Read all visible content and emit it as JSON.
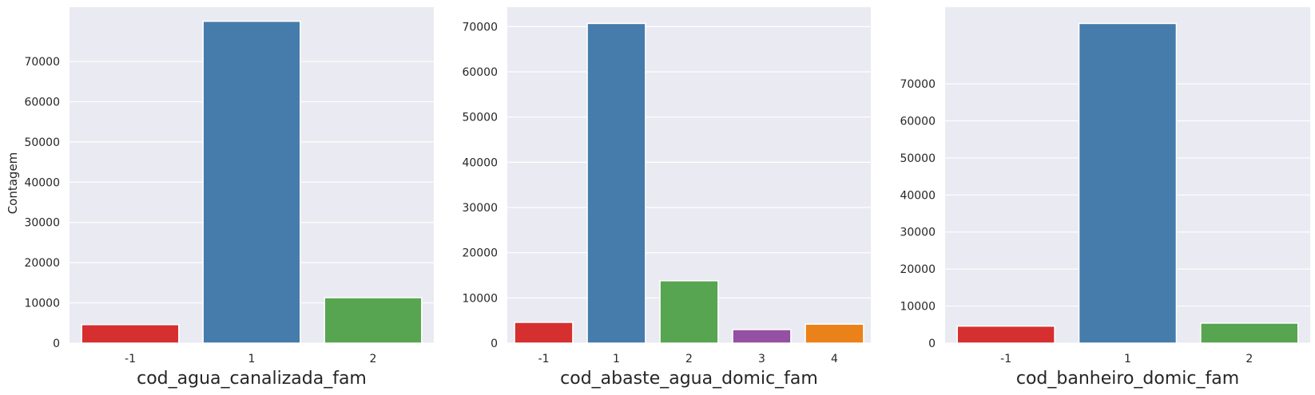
{
  "chart_data": [
    {
      "type": "bar",
      "xlabel": "cod_agua_canalizada_fam",
      "ylabel": "Contagem",
      "categories": [
        "-1",
        "1",
        "2"
      ],
      "values": [
        4600,
        80000,
        11300
      ],
      "colors": [
        "#d62f2f",
        "#457cab",
        "#58a551"
      ],
      "ylim": [
        0,
        83500
      ],
      "yticks": [
        0,
        10000,
        20000,
        30000,
        40000,
        50000,
        60000,
        70000
      ],
      "ytick_labels": [
        "0",
        "10000",
        "20000",
        "30000",
        "40000",
        "50000",
        "60000",
        "70000"
      ],
      "grid": true
    },
    {
      "type": "bar",
      "xlabel": "cod_abaste_agua_domic_fam",
      "ylabel": "",
      "categories": [
        "-1",
        "1",
        "2",
        "3",
        "4"
      ],
      "values": [
        4600,
        70700,
        13800,
        3000,
        4200
      ],
      "colors": [
        "#d62f2f",
        "#457cab",
        "#58a551",
        "#9450a1",
        "#eb8119"
      ],
      "ylim": [
        0,
        74300
      ],
      "yticks": [
        0,
        10000,
        20000,
        30000,
        40000,
        50000,
        60000,
        70000
      ],
      "ytick_labels": [
        "0",
        "10000",
        "20000",
        "30000",
        "40000",
        "50000",
        "60000",
        "70000"
      ],
      "grid": true
    },
    {
      "type": "bar",
      "xlabel": "cod_banheiro_domic_fam",
      "ylabel": "",
      "categories": [
        "-1",
        "1",
        "2"
      ],
      "values": [
        4600,
        86300,
        5400
      ],
      "colors": [
        "#d62f2f",
        "#457cab",
        "#58a551"
      ],
      "ylim": [
        0,
        90700
      ],
      "yticks": [
        0,
        10000,
        20000,
        30000,
        40000,
        50000,
        60000,
        70000
      ],
      "ytick_labels": [
        "0",
        "10000",
        "20000",
        "30000",
        "40000",
        "50000",
        "60000",
        "70000"
      ],
      "grid": true
    }
  ]
}
